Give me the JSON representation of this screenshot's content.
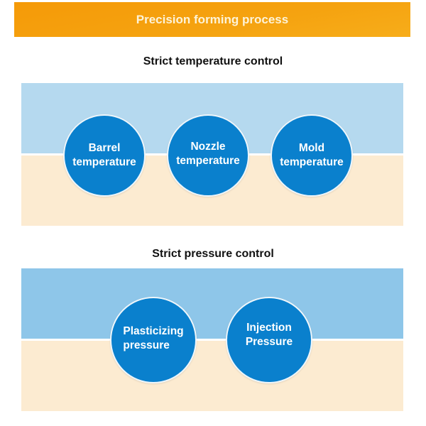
{
  "header": {
    "title": "Precision forming process"
  },
  "sections": [
    {
      "title": "Strict temperature control",
      "items": [
        {
          "line1": "Barrel",
          "line2": "temperature"
        },
        {
          "line1": "Nozzle",
          "line2": "temperature"
        },
        {
          "line1": "Mold",
          "line2": "temperature"
        }
      ]
    },
    {
      "title": "Strict pressure control",
      "items": [
        {
          "line1": "Plasticizing",
          "line2": "pressure"
        },
        {
          "line1": "Injection",
          "line2": "Pressure"
        }
      ]
    }
  ],
  "colors": {
    "banner": "#f5a30a",
    "panel_top_1": "#b5d9ef",
    "panel_top_2": "#8ec6e9",
    "panel_bottom": "#fcebd1",
    "circle": "#0a80cd"
  }
}
